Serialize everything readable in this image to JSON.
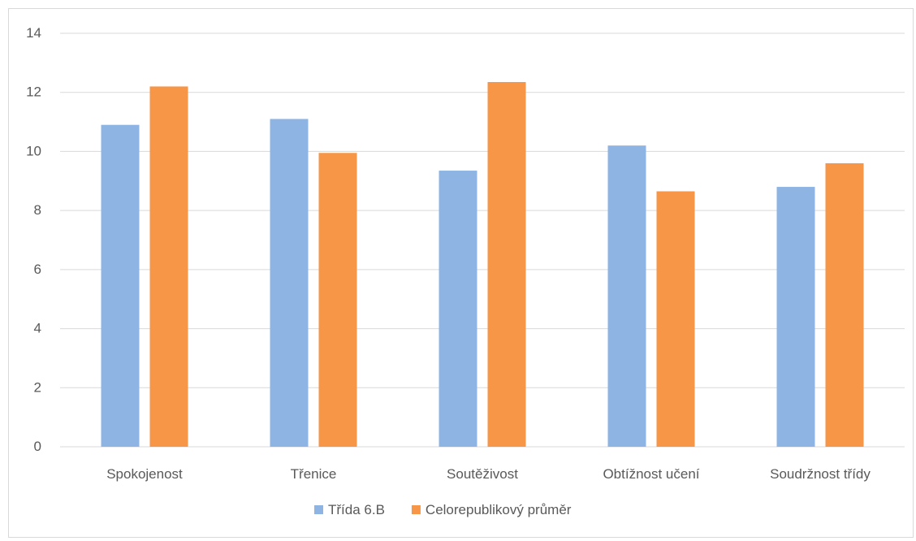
{
  "chart_data": {
    "type": "bar",
    "categories": [
      "Spokojenost",
      "Třenice",
      "Soutěživost",
      "Obtížnost učení",
      "Soudržnost třídy"
    ],
    "series": [
      {
        "name": "Třída 6.B",
        "color": "#8eb4e3",
        "values": [
          10.9,
          11.1,
          9.35,
          10.2,
          8.8
        ]
      },
      {
        "name": "Celorepublikový průměr",
        "color": "#f79646",
        "values": [
          12.2,
          9.95,
          12.35,
          8.65,
          9.6
        ]
      }
    ],
    "yticks": [
      "0",
      "2",
      "4",
      "6",
      "8",
      "10",
      "12",
      "14"
    ],
    "ylim": [
      0,
      14
    ],
    "ystep": 2,
    "grid": true,
    "gridColor": "#d9d9d9",
    "legend_position": "bottom"
  }
}
